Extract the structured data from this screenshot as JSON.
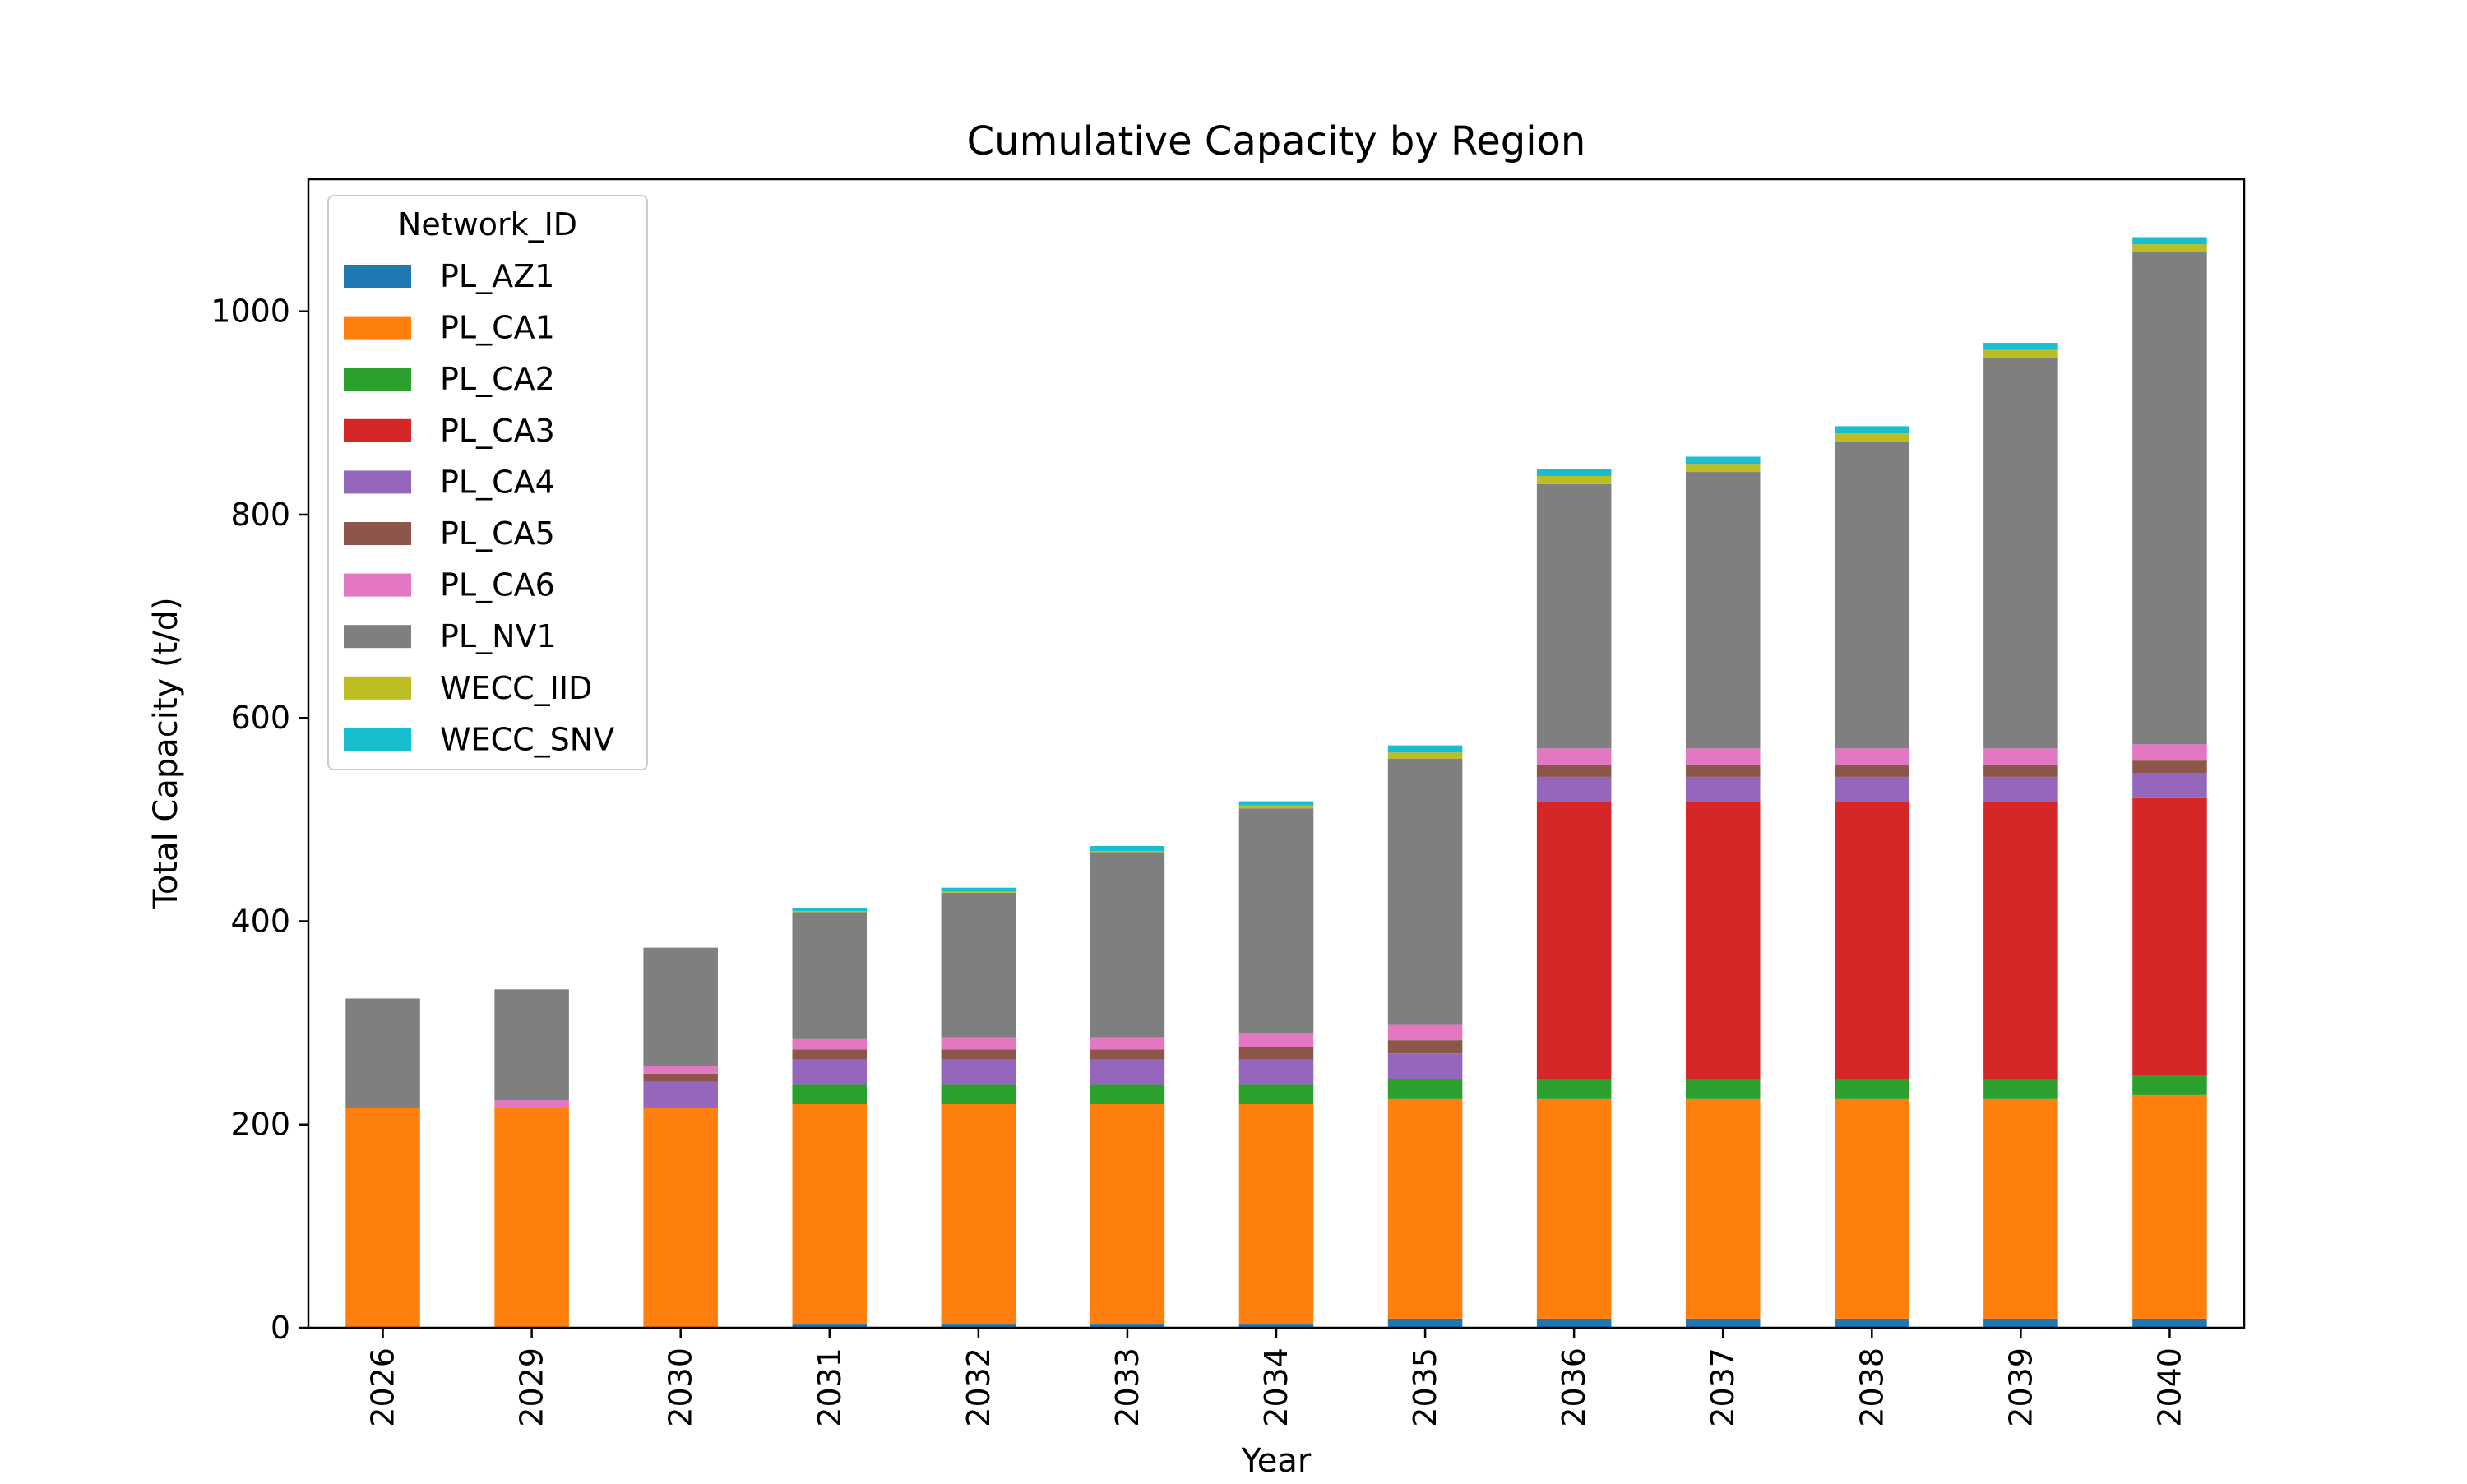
{
  "chart_data": {
    "type": "bar",
    "stacked": true,
    "title": "Cumulative Capacity by Region",
    "xlabel": "Year",
    "ylabel": "Total Capacity (t/d)",
    "ylim": [
      0,
      1130
    ],
    "yticks": [
      0,
      200,
      400,
      600,
      800,
      1000
    ],
    "grid": false,
    "legend": {
      "title": "Network_ID",
      "placement": "top-left"
    },
    "categories": [
      "2026",
      "2029",
      "2030",
      "2031",
      "2032",
      "2033",
      "2034",
      "2035",
      "2036",
      "2037",
      "2038",
      "2039",
      "2040"
    ],
    "series": [
      {
        "name": "PL_AZ1",
        "color": "#1f77b4",
        "values": [
          0,
          0,
          0,
          4,
          4,
          4,
          4,
          9,
          9,
          9,
          9,
          9,
          9
        ]
      },
      {
        "name": "PL_CA1",
        "color": "#ff7f0e",
        "values": [
          216,
          216,
          216,
          216,
          216,
          216,
          216,
          216,
          216,
          216,
          216,
          216,
          220
        ]
      },
      {
        "name": "PL_CA2",
        "color": "#2ca02c",
        "values": [
          0,
          0,
          0,
          19,
          19,
          19,
          19,
          20,
          20,
          20,
          20,
          20,
          20
        ]
      },
      {
        "name": "PL_CA3",
        "color": "#d62728",
        "values": [
          0,
          0,
          0,
          0,
          0,
          0,
          0,
          0,
          272,
          272,
          272,
          272,
          272
        ]
      },
      {
        "name": "PL_CA4",
        "color": "#9467bd",
        "values": [
          0,
          0,
          26,
          25,
          25,
          25,
          25,
          25,
          25,
          25,
          25,
          25,
          25
        ]
      },
      {
        "name": "PL_CA5",
        "color": "#8c564b",
        "values": [
          0,
          0,
          8,
          10,
          10,
          10,
          12,
          13,
          12,
          12,
          12,
          12,
          12
        ]
      },
      {
        "name": "PL_CA6",
        "color": "#e377c2",
        "values": [
          0,
          8,
          8,
          10,
          12,
          12,
          14,
          15,
          16,
          16,
          16,
          16,
          16
        ]
      },
      {
        "name": "PL_NV1",
        "color": "#7f7f7f",
        "values": [
          108,
          109,
          116,
          125,
          142,
          182,
          221,
          262,
          260,
          272,
          302,
          384,
          484
        ]
      },
      {
        "name": "WECC_IID",
        "color": "#bcbd22",
        "values": [
          0,
          0,
          0,
          1,
          1,
          1,
          3,
          6,
          8,
          8,
          8,
          8,
          8
        ]
      },
      {
        "name": "WECC_SNV",
        "color": "#17becf",
        "values": [
          0,
          0,
          0,
          3,
          4,
          5,
          4,
          7,
          7,
          7,
          7,
          7,
          7
        ]
      }
    ]
  }
}
